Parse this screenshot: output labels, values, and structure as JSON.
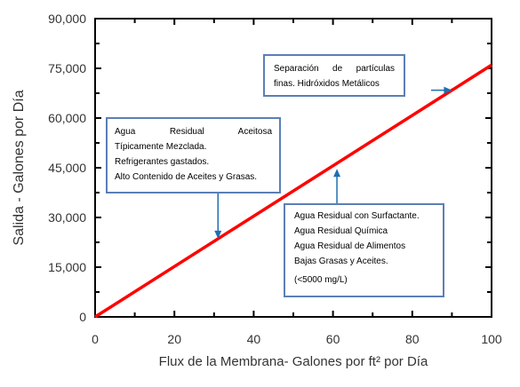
{
  "chart_data": {
    "type": "line",
    "xlabel": "Flux de la Membrana- Galones por ft² por Día",
    "ylabel": "Salida - Galones por Día",
    "xlim": [
      0,
      100
    ],
    "ylim": [
      0,
      90000
    ],
    "x_ticks": [
      0,
      20,
      40,
      60,
      80,
      100
    ],
    "y_ticks": [
      0,
      15000,
      30000,
      45000,
      60000,
      75000,
      90000
    ],
    "x_tick_labels": [
      "0",
      "20",
      "40",
      "60",
      "80",
      "100"
    ],
    "y_tick_labels": [
      "0",
      "15,000",
      "30,000",
      "45,000",
      "60,000",
      "75,000",
      "90,000"
    ],
    "series": [
      {
        "x": [
          0,
          100
        ],
        "y": [
          0,
          76000
        ],
        "color": "#ff0000"
      }
    ],
    "annotations": [
      {
        "lines": [
          "Separación de partículas",
          "finas. Hidróxidos Metálicos"
        ],
        "arrow_target": {
          "x": 90,
          "y": 68400
        }
      },
      {
        "lines": [
          "Agua Residual Aceitosa",
          "Típicamente Mezclada.",
          "Refrigerantes gastados.",
          "Alto Contenido de Aceites y Grasas."
        ],
        "arrow_target": {
          "x": 31,
          "y": 23600
        }
      },
      {
        "lines": [
          "Agua Residual con Surfactante.",
          "Agua Residual Química",
          "Agua Residual de Alimentos",
          "Bajas Grasas y Aceites.",
          "(<5000 mg/L)"
        ],
        "arrow_target": {
          "x": 61,
          "y": 46000
        }
      }
    ],
    "grid": false,
    "legend": "none",
    "colors": {
      "line": "#ff0000",
      "box_border": "#5b7fb5",
      "arrow": "#1f6fb2",
      "frame": "#000000"
    }
  }
}
